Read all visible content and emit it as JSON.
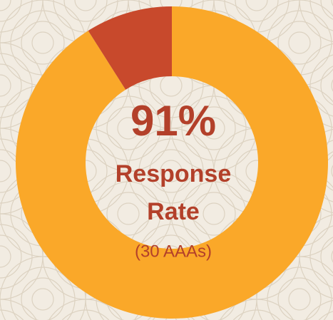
{
  "chart_data": {
    "type": "donut",
    "values": [
      91,
      9
    ],
    "value_labels": [
      "91%",
      null
    ],
    "colors": [
      "#FAA829",
      "#C8492C"
    ],
    "title_lines": [
      "Response",
      "Rate"
    ],
    "subtitle": "(30 AAAs)"
  }
}
